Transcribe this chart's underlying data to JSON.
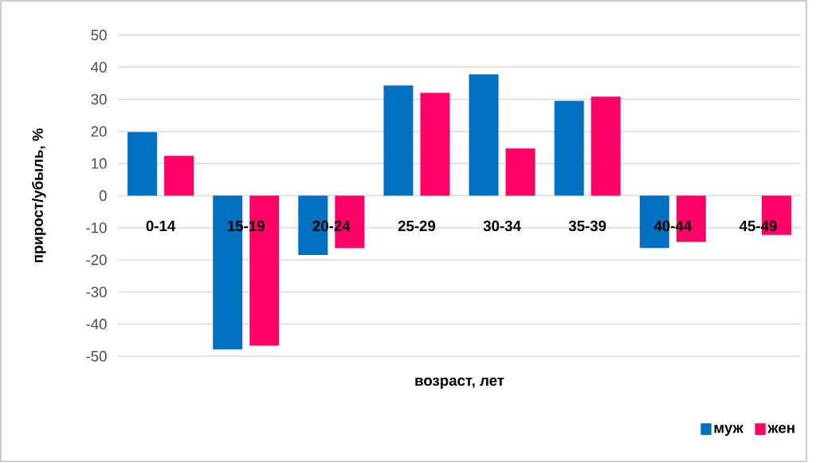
{
  "chart_data": {
    "type": "bar",
    "xlabel": "возраст, лет",
    "ylabel": "прирост/убыль, %",
    "categories": [
      "0-14",
      "15-19",
      "20-24",
      "25-29",
      "30-34",
      "35-39",
      "40-44",
      "45-49"
    ],
    "series": [
      {
        "name": "муж",
        "color": "#0070c0",
        "values": [
          19.8,
          -47.9,
          -18.5,
          34.3,
          37.8,
          29.5,
          -16.3,
          null
        ]
      },
      {
        "name": "жен",
        "color": "#ff0066",
        "values": [
          12.4,
          -46.7,
          -16.3,
          32.0,
          14.7,
          30.8,
          -14.4,
          -12.2
        ]
      }
    ],
    "ylim": [
      -50,
      50
    ],
    "yticks": [
      -50,
      -40,
      -30,
      -20,
      -10,
      0,
      10,
      20,
      30,
      40,
      50
    ],
    "grid": "y",
    "legend": "bottom right"
  }
}
